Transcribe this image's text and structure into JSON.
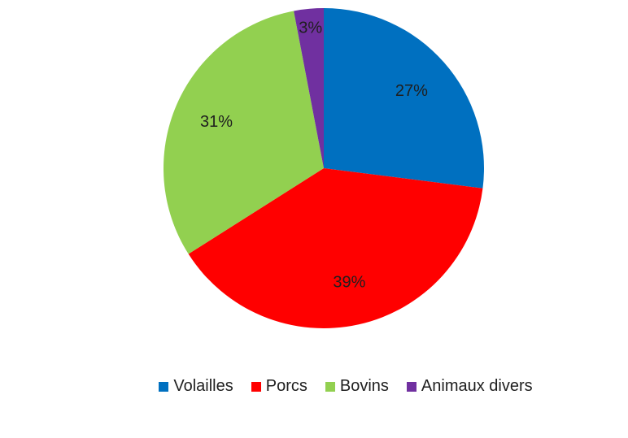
{
  "chart_data": {
    "type": "pie",
    "title": "",
    "categories": [
      "Volailles",
      "Porcs",
      "Bovins",
      "Animaux divers"
    ],
    "values": [
      27,
      39,
      31,
      3
    ],
    "labels": [
      "27%",
      "39%",
      "31%",
      "3%"
    ],
    "colors": [
      "#0070C0",
      "#FF0000",
      "#92D050",
      "#7030A0"
    ],
    "legend_position": "bottom",
    "start_angle": "top, clockwise"
  }
}
